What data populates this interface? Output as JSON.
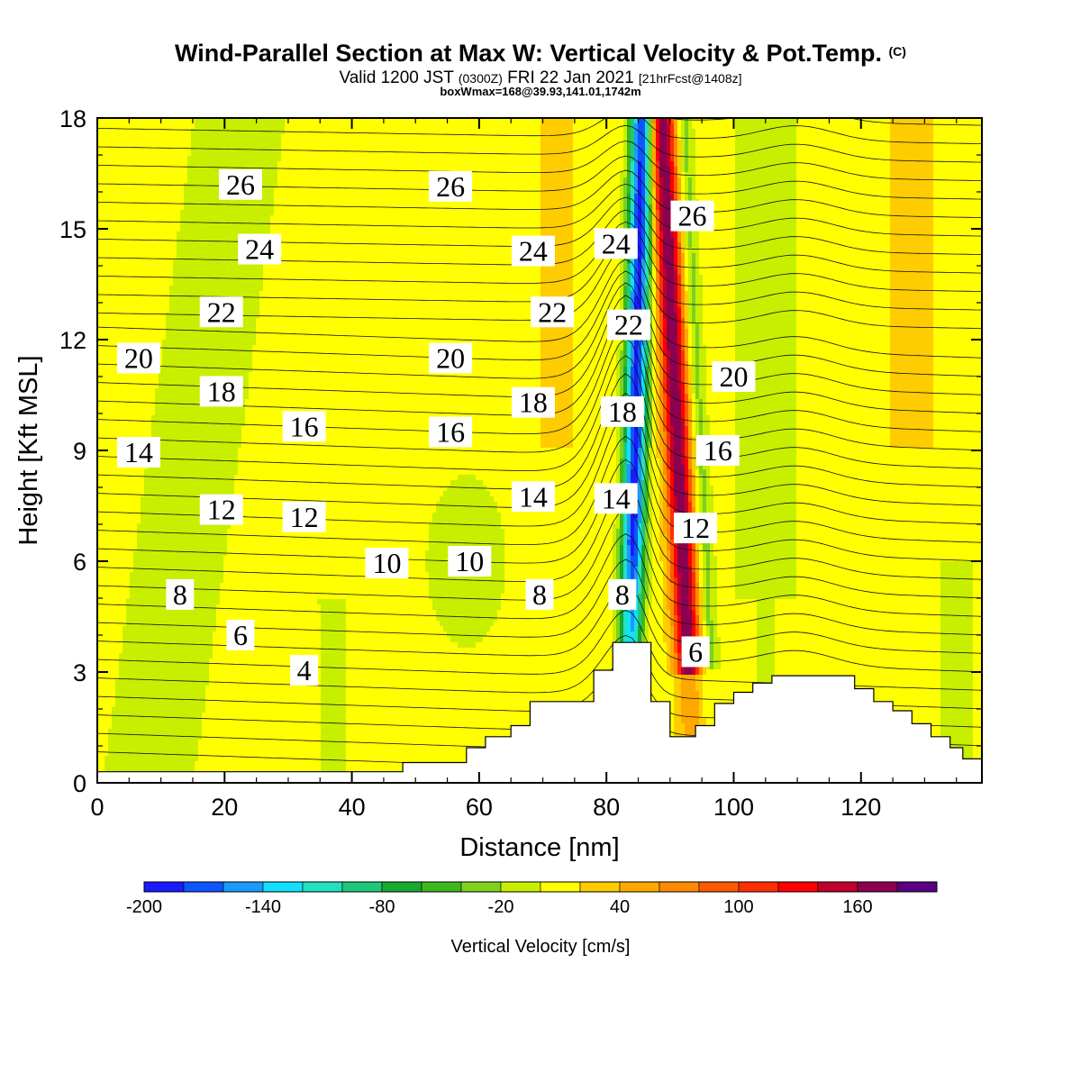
{
  "header": {
    "title_main": "Wind-Parallel Section at Max W: Vertical Velocity & Pot.Temp.",
    "title_mark": "(C)",
    "valid_a": "Valid 1200 JST",
    "valid_b": "(0300Z)",
    "valid_c": "FRI 22 Jan 2021",
    "valid_d": "[21hrFcst@1408z]",
    "box_line": "boxWmax=168@39.93,141.01,1742m"
  },
  "chart_data": {
    "type": "heatmap",
    "xlabel": "Distance [nm]",
    "ylabel": "Height [Kft MSL]",
    "xlim": [
      0,
      139
    ],
    "ylim": [
      0,
      18
    ],
    "xticks": [
      0,
      20,
      40,
      60,
      80,
      100,
      120
    ],
    "yticks": [
      0,
      3,
      6,
      9,
      12,
      15,
      18
    ],
    "colorbar": {
      "label": "Vertical Velocity [cm/s]",
      "min": -200,
      "max": 200,
      "step": 20,
      "tick_labels": [
        -200,
        -140,
        -80,
        -20,
        40,
        100,
        160
      ],
      "colors": [
        "#1a1aff",
        "#0f55ff",
        "#1a9aff",
        "#11e0ff",
        "#22e0c0",
        "#1ec87a",
        "#19a832",
        "#3cb81e",
        "#7cd21e",
        "#c8ef00",
        "#ffff00",
        "#ffcc00",
        "#ffa800",
        "#ff8c00",
        "#ff5a00",
        "#ff2e00",
        "#ff0000",
        "#c0002c",
        "#8c0050",
        "#5a0082"
      ]
    },
    "terrain": {
      "x": [
        0,
        48,
        48,
        58,
        58,
        61,
        61,
        65,
        65,
        68,
        68,
        78,
        78,
        81,
        81,
        87,
        87,
        90,
        90,
        94,
        94,
        97,
        97,
        100,
        100,
        103,
        103,
        106,
        106,
        109,
        109,
        119,
        119,
        122,
        122,
        125,
        125,
        128,
        128,
        131,
        131,
        134,
        134,
        136,
        136,
        139
      ],
      "y": [
        0.3,
        0.3,
        0.55,
        0.55,
        0.95,
        0.95,
        1.25,
        1.25,
        1.55,
        1.55,
        2.2,
        2.2,
        3.05,
        3.05,
        3.8,
        3.8,
        2.2,
        2.2,
        1.25,
        1.25,
        1.55,
        1.55,
        2.15,
        2.15,
        2.45,
        2.45,
        2.7,
        2.7,
        2.9,
        2.9,
        2.9,
        2.9,
        2.55,
        2.55,
        2.2,
        2.2,
        1.95,
        1.95,
        1.6,
        1.6,
        1.25,
        1.25,
        0.95,
        0.95,
        0.65,
        0.65
      ]
    },
    "velocity_features": [
      {
        "kind": "downdraft",
        "x": 84.5,
        "w_min": -200
      },
      {
        "kind": "updraft",
        "x": 91.5,
        "w_max": 168
      }
    ],
    "theta_labels": [
      {
        "text": "26",
        "x": 22.5,
        "y": 16.2
      },
      {
        "text": "26",
        "x": 55.5,
        "y": 16.15
      },
      {
        "text": "26",
        "x": 93.5,
        "y": 15.35
      },
      {
        "text": "24",
        "x": 25.5,
        "y": 14.45
      },
      {
        "text": "24",
        "x": 68.5,
        "y": 14.4
      },
      {
        "text": "24",
        "x": 81.5,
        "y": 14.6
      },
      {
        "text": "22",
        "x": 19.5,
        "y": 12.75
      },
      {
        "text": "22",
        "x": 71.5,
        "y": 12.75
      },
      {
        "text": "22",
        "x": 83.5,
        "y": 12.4
      },
      {
        "text": "20",
        "x": 6.5,
        "y": 11.5
      },
      {
        "text": "20",
        "x": 55.5,
        "y": 11.5
      },
      {
        "text": "20",
        "x": 100,
        "y": 11.0
      },
      {
        "text": "18",
        "x": 19.5,
        "y": 10.6
      },
      {
        "text": "18",
        "x": 68.5,
        "y": 10.3
      },
      {
        "text": "18",
        "x": 82.5,
        "y": 10.05
      },
      {
        "text": "16",
        "x": 32.5,
        "y": 9.65
      },
      {
        "text": "16",
        "x": 55.5,
        "y": 9.5
      },
      {
        "text": "16",
        "x": 97.5,
        "y": 9.0
      },
      {
        "text": "14",
        "x": 6.5,
        "y": 8.95
      },
      {
        "text": "14",
        "x": 68.5,
        "y": 7.75
      },
      {
        "text": "14",
        "x": 81.5,
        "y": 7.7
      },
      {
        "text": "12",
        "x": 19.5,
        "y": 7.4
      },
      {
        "text": "12",
        "x": 32.5,
        "y": 7.2
      },
      {
        "text": "12",
        "x": 94,
        "y": 6.9
      },
      {
        "text": "10",
        "x": 45.5,
        "y": 5.95
      },
      {
        "text": "10",
        "x": 58.5,
        "y": 6.0
      },
      {
        "text": "8",
        "x": 13,
        "y": 5.1
      },
      {
        "text": "8",
        "x": 69.5,
        "y": 5.1
      },
      {
        "text": "8",
        "x": 82.5,
        "y": 5.1
      },
      {
        "text": "6",
        "x": 22.5,
        "y": 4.0
      },
      {
        "text": "6",
        "x": 94,
        "y": 3.55
      },
      {
        "text": "4",
        "x": 32.5,
        "y": 3.05
      }
    ]
  }
}
